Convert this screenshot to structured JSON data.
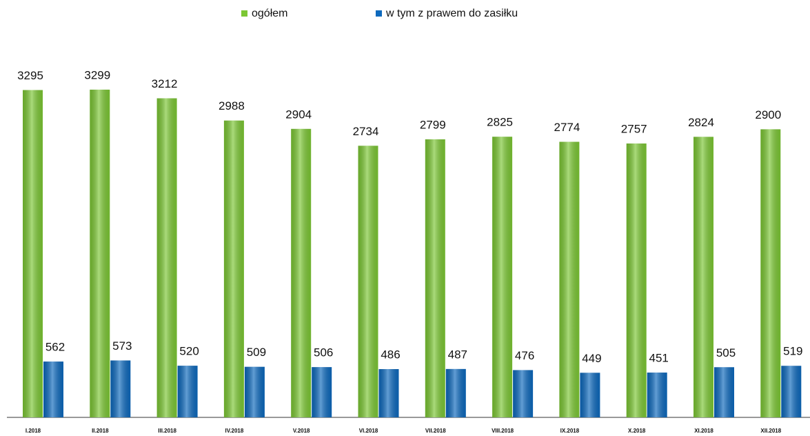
{
  "chart_data": {
    "type": "bar",
    "categories": [
      "I.2018",
      "II.2018",
      "III.2018",
      "IV.2018",
      "V.2018",
      "VI.2018",
      "VII.2018",
      "VIII.2018",
      "IX.2018",
      "X.2018",
      "XI.2018",
      "XII.2018"
    ],
    "series": [
      {
        "name": "ogółem",
        "color": "#7cc734",
        "values": [
          3295,
          3299,
          3212,
          2988,
          2904,
          2734,
          2799,
          2825,
          2774,
          2757,
          2824,
          2900
        ]
      },
      {
        "name": "w tym z prawem do zasiłku",
        "color": "#0d69bd",
        "values": [
          562,
          573,
          520,
          509,
          506,
          486,
          487,
          476,
          449,
          451,
          505,
          519
        ]
      }
    ],
    "ylim": [
      0,
      3500
    ]
  }
}
